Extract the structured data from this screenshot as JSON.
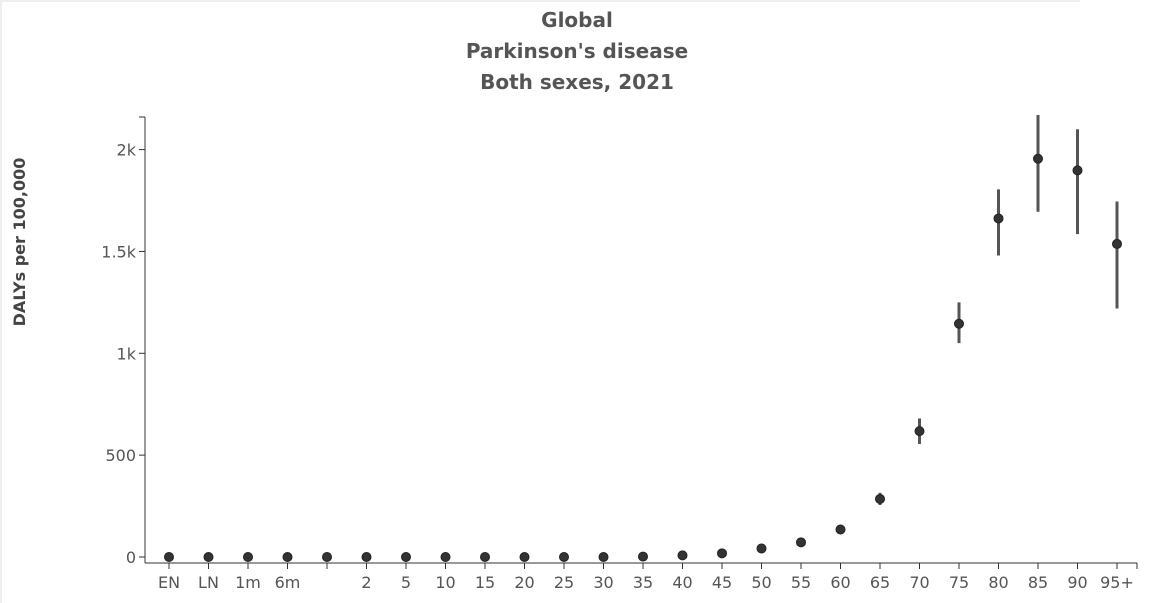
{
  "chart_data": {
    "type": "scatter",
    "title_lines": [
      "Global",
      "Parkinson's disease",
      "Both sexes, 2021"
    ],
    "xlabel": "",
    "ylabel": "DALYs per 100,000",
    "categories": [
      "EN",
      "LN",
      "1m",
      "6m",
      "",
      "2",
      "5",
      "10",
      "15",
      "20",
      "25",
      "30",
      "35",
      "40",
      "45",
      "50",
      "55",
      "60",
      "65",
      "70",
      "75",
      "80",
      "85",
      "90",
      "95+"
    ],
    "values": [
      0,
      0,
      0,
      0,
      0,
      0,
      0,
      0,
      0,
      0,
      0,
      0,
      2,
      8,
      18,
      42,
      72,
      135,
      285,
      618,
      1145,
      1662,
      1955,
      1898,
      1537
    ],
    "lower": [
      0,
      0,
      0,
      0,
      0,
      0,
      0,
      0,
      0,
      0,
      0,
      0,
      2,
      7,
      15,
      37,
      62,
      120,
      255,
      555,
      1050,
      1480,
      1695,
      1585,
      1220
    ],
    "upper": [
      0,
      0,
      0,
      0,
      0,
      0,
      0,
      0,
      0,
      0,
      0,
      0,
      3,
      10,
      22,
      48,
      82,
      150,
      315,
      680,
      1250,
      1805,
      2170,
      2100,
      1745
    ],
    "ylim": [
      0,
      2160
    ],
    "yticks": [
      0,
      500,
      1000,
      1500,
      2000
    ],
    "ytick_labels": [
      "0",
      "500",
      "1k",
      "1.5k",
      "2k"
    ],
    "grid": false,
    "colors": {
      "point": "#333333",
      "error_bar": "#555555",
      "axis": "#333333"
    }
  }
}
